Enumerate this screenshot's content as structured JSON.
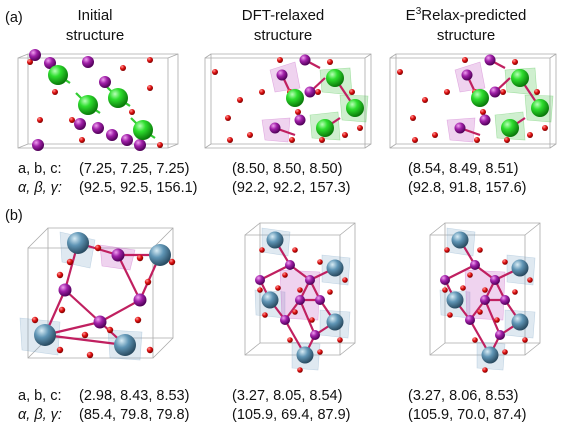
{
  "headers": [
    {
      "line1": "Initial",
      "line2": "structure"
    },
    {
      "line1": "DFT-relaxed",
      "line2": "structure"
    },
    {
      "prefix": "E",
      "sup": "3",
      "rest": "Relax-predicted",
      "line2": "structure"
    }
  ],
  "panels": [
    {
      "label": "(a)",
      "lattice_label": "a, b, c:",
      "angle_label": "α, β, γ:",
      "lattice": [
        "(7.25, 7.25, 7.25)",
        "(8.50, 8.50, 8.50)",
        "(8.54, 8.49, 8.51)"
      ],
      "angles": [
        "(92.5, 92.5, 156.1)",
        "(92.2, 92.2, 157.3)",
        "(92.8, 91.8, 157.6)"
      ]
    },
    {
      "label": "(b)",
      "lattice_label": "a, b, c:",
      "angle_label": "α, β, γ:",
      "lattice": [
        "(2.98, 8.43, 8.53)",
        "(3.27, 8.05, 8.54)",
        "(3.27, 8.06, 8.53)"
      ],
      "angles": [
        "(85.4, 79.8, 79.8)",
        "(105.9, 69.4, 87.9)",
        "(105.9, 70.0, 87.4)"
      ]
    }
  ]
}
